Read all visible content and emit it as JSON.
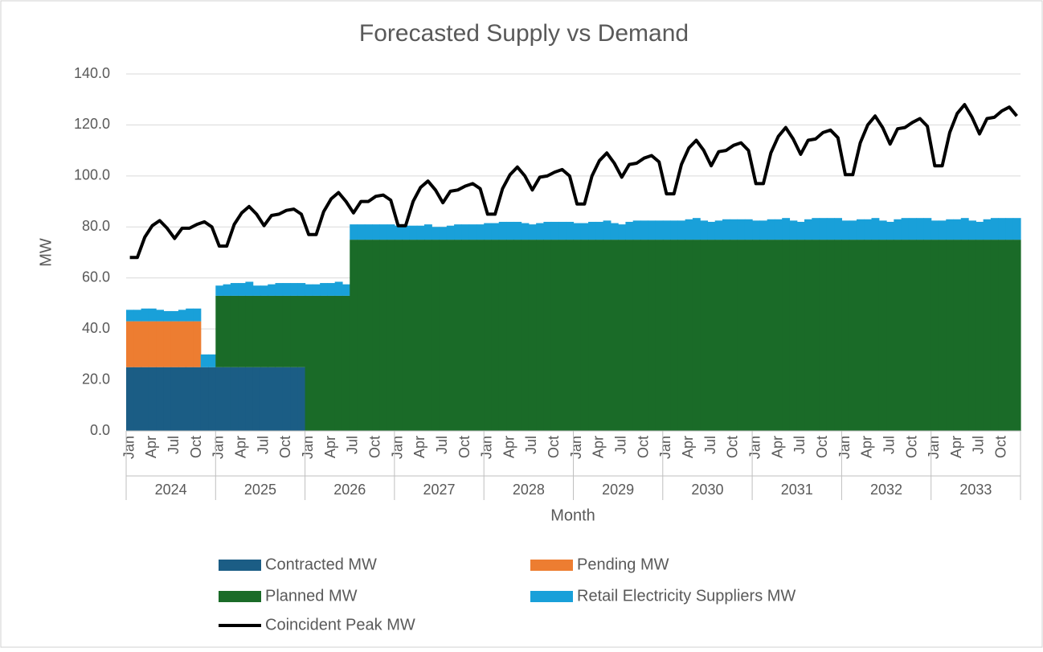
{
  "chart_data": {
    "type": "bar",
    "stacked": true,
    "title": "Forecasted Supply vs Demand",
    "x_label": "Month",
    "y_label": "MW",
    "categories": [
      "Jan",
      null,
      null,
      "Apr",
      null,
      null,
      "Jul",
      null,
      null,
      "Oct",
      null,
      null,
      "Jan",
      null,
      null,
      "Apr",
      null,
      null,
      "Jul",
      null,
      null,
      "Oct",
      null,
      null,
      "Jan",
      null,
      null,
      "Apr",
      null,
      null,
      "Jul",
      null,
      null,
      "Oct",
      null,
      null,
      "Jan",
      null,
      null,
      "Apr",
      null,
      null,
      "Jul",
      null,
      null,
      "Oct",
      null,
      null,
      "Jan",
      null,
      null,
      "Apr",
      null,
      null,
      "Jul",
      null,
      null,
      "Oct",
      null,
      null,
      "Jan",
      null,
      null,
      "Apr",
      null,
      null,
      "Jul",
      null,
      null,
      "Oct",
      null,
      null,
      "Jan",
      null,
      null,
      "Apr",
      null,
      null,
      "Jul",
      null,
      null,
      "Oct",
      null,
      null,
      "Jan",
      null,
      null,
      "Apr",
      null,
      null,
      "Jul",
      null,
      null,
      "Oct",
      null,
      null,
      "Jan",
      null,
      null,
      "Apr",
      null,
      null,
      "Jul",
      null,
      null,
      "Oct",
      null,
      null,
      "Jan",
      null,
      null,
      "Apr",
      null,
      null,
      "Jul",
      null,
      null,
      "Oct",
      null,
      null
    ],
    "x_groups": [
      "2024",
      "2025",
      "2026",
      "2027",
      "2028",
      "2029",
      "2030",
      "2031",
      "2032",
      "2033"
    ],
    "ylim": [
      0,
      140
    ],
    "yticks": [
      {
        "value": 0,
        "label": "0.0"
      },
      {
        "value": 20,
        "label": "20.0"
      },
      {
        "value": 40,
        "label": "40.0"
      },
      {
        "value": 60,
        "label": "60.0"
      },
      {
        "value": 80,
        "label": "80.0"
      },
      {
        "value": 100,
        "label": "100.0"
      },
      {
        "value": 120,
        "label": "120.0"
      },
      {
        "value": 140,
        "label": "140.0"
      }
    ],
    "grid": true,
    "series": [
      {
        "name": "Contracted MW",
        "color": "#1b5d85",
        "values": [
          25,
          25,
          25,
          25,
          25,
          25,
          25,
          25,
          25,
          25,
          25,
          25,
          25,
          25,
          25,
          25,
          25,
          25,
          25,
          25,
          25,
          25,
          25,
          25,
          0,
          0,
          0,
          0,
          0,
          0,
          0,
          0,
          0,
          0,
          0,
          0,
          0,
          0,
          0,
          0,
          0,
          0,
          0,
          0,
          0,
          0,
          0,
          0,
          0,
          0,
          0,
          0,
          0,
          0,
          0,
          0,
          0,
          0,
          0,
          0,
          0,
          0,
          0,
          0,
          0,
          0,
          0,
          0,
          0,
          0,
          0,
          0,
          0,
          0,
          0,
          0,
          0,
          0,
          0,
          0,
          0,
          0,
          0,
          0,
          0,
          0,
          0,
          0,
          0,
          0,
          0,
          0,
          0,
          0,
          0,
          0,
          0,
          0,
          0,
          0,
          0,
          0,
          0,
          0,
          0,
          0,
          0,
          0,
          0,
          0,
          0,
          0,
          0,
          0,
          0,
          0,
          0,
          0,
          0,
          0
        ]
      },
      {
        "name": "Pending MW",
        "color": "#ed7d31",
        "values": [
          18,
          18,
          18,
          18,
          18,
          18,
          18,
          18,
          18,
          18,
          0,
          0,
          0,
          0,
          0,
          0,
          0,
          0,
          0,
          0,
          0,
          0,
          0,
          0,
          0,
          0,
          0,
          0,
          0,
          0,
          0,
          0,
          0,
          0,
          0,
          0,
          0,
          0,
          0,
          0,
          0,
          0,
          0,
          0,
          0,
          0,
          0,
          0,
          0,
          0,
          0,
          0,
          0,
          0,
          0,
          0,
          0,
          0,
          0,
          0,
          0,
          0,
          0,
          0,
          0,
          0,
          0,
          0,
          0,
          0,
          0,
          0,
          0,
          0,
          0,
          0,
          0,
          0,
          0,
          0,
          0,
          0,
          0,
          0,
          0,
          0,
          0,
          0,
          0,
          0,
          0,
          0,
          0,
          0,
          0,
          0,
          0,
          0,
          0,
          0,
          0,
          0,
          0,
          0,
          0,
          0,
          0,
          0,
          0,
          0,
          0,
          0,
          0,
          0,
          0,
          0,
          0,
          0,
          0,
          0
        ]
      },
      {
        "name": "Planned MW",
        "color": "#1a6b28",
        "values": [
          0,
          0,
          0,
          0,
          0,
          0,
          0,
          0,
          0,
          0,
          0,
          0,
          28,
          28,
          28,
          28,
          28,
          28,
          28,
          28,
          28,
          28,
          28,
          28,
          53,
          53,
          53,
          53,
          53,
          53,
          75,
          75,
          75,
          75,
          75,
          75,
          75,
          75,
          75,
          75,
          75,
          75,
          75,
          75,
          75,
          75,
          75,
          75,
          75,
          75,
          75,
          75,
          75,
          75,
          75,
          75,
          75,
          75,
          75,
          75,
          75,
          75,
          75,
          75,
          75,
          75,
          75,
          75,
          75,
          75,
          75,
          75,
          75,
          75,
          75,
          75,
          75,
          75,
          75,
          75,
          75,
          75,
          75,
          75,
          75,
          75,
          75,
          75,
          75,
          75,
          75,
          75,
          75,
          75,
          75,
          75,
          75,
          75,
          75,
          75,
          75,
          75,
          75,
          75,
          75,
          75,
          75,
          75,
          75,
          75,
          75,
          75,
          75,
          75,
          75,
          75,
          75,
          75,
          75,
          75
        ]
      },
      {
        "name": "Retail Electricity Suppliers MW",
        "color": "#19a0d9",
        "values": [
          4.5,
          4.5,
          5,
          5,
          4.5,
          4,
          4,
          4.5,
          5,
          5,
          5,
          5,
          4,
          4.5,
          5,
          5,
          5.5,
          4,
          4,
          4.5,
          5,
          5,
          5,
          5,
          4.5,
          4.5,
          5,
          5,
          5.5,
          4.5,
          6,
          6,
          6,
          6,
          6,
          6,
          5.5,
          5.5,
          5.5,
          5.5,
          6,
          5,
          5,
          5.5,
          6,
          6,
          6,
          6,
          6.5,
          6.5,
          7,
          7,
          7,
          6.5,
          6,
          6.5,
          7,
          7,
          7,
          7,
          6.5,
          6.5,
          7,
          7,
          7.5,
          6.5,
          6,
          7,
          7.5,
          7.5,
          7.5,
          7.5,
          7.5,
          7.5,
          7.5,
          8,
          8.5,
          7.5,
          7,
          7.5,
          8,
          8,
          8,
          8,
          7.5,
          7.5,
          8,
          8,
          8.5,
          7.5,
          7,
          8,
          8.5,
          8.5,
          8.5,
          8.5,
          7.5,
          7.5,
          8,
          8,
          8.5,
          7.5,
          7,
          8,
          8.5,
          8.5,
          8.5,
          8.5,
          7.5,
          7.5,
          8,
          8,
          8.5,
          7.5,
          7,
          8,
          8.5,
          8.5,
          8.5,
          8.5
        ]
      },
      {
        "name": "Coincident Peak MW",
        "color": "#000000",
        "type": "line",
        "values": [
          68,
          68,
          76,
          80.5,
          82.5,
          79.5,
          75.5,
          79.5,
          79.5,
          81,
          82,
          80,
          72.5,
          72.5,
          81,
          85.5,
          88,
          85,
          80.5,
          84.5,
          85,
          86.5,
          87,
          85,
          77,
          77,
          86,
          91,
          93.5,
          90,
          85.5,
          90,
          90,
          92,
          92.5,
          90.5,
          80.5,
          80.5,
          90,
          95.5,
          98,
          94.5,
          89.5,
          94,
          94.5,
          96,
          97,
          95,
          85,
          85,
          95,
          100.5,
          103.5,
          100,
          94.5,
          99.5,
          100,
          101.5,
          102.5,
          100,
          89,
          89,
          100,
          106,
          109,
          105,
          99.5,
          104.5,
          105,
          107,
          108,
          105.5,
          93,
          93,
          104.5,
          111,
          114,
          110,
          104,
          109.5,
          110,
          112,
          113,
          110,
          97,
          97,
          109,
          115.5,
          119,
          114.5,
          108.5,
          114,
          114.5,
          117,
          118,
          115,
          100.5,
          100.5,
          113,
          120,
          123.5,
          119,
          112.5,
          118.5,
          119,
          121,
          122.5,
          119.5,
          104,
          104,
          117,
          124.5,
          128,
          123,
          116.5,
          122.5,
          123,
          125.5,
          127,
          123.5
        ]
      }
    ]
  }
}
